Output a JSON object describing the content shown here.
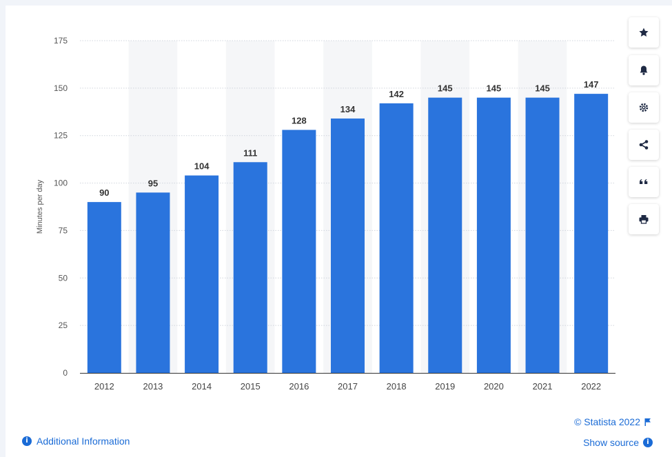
{
  "chart_data": {
    "type": "bar",
    "categories": [
      "2012",
      "2013",
      "2014",
      "2015",
      "2016",
      "2017",
      "2018",
      "2019",
      "2020",
      "2021",
      "2022"
    ],
    "values": [
      90,
      95,
      104,
      111,
      128,
      134,
      142,
      145,
      145,
      145,
      147
    ],
    "data_labels": [
      "90",
      "95",
      "104",
      "111",
      "128",
      "134",
      "142",
      "145",
      "145",
      "145",
      "147"
    ],
    "ylabel": "Minutes per day",
    "xlabel": "",
    "ylim": [
      0,
      175
    ],
    "y_ticks": [
      "0",
      "25",
      "50",
      "75",
      "100",
      "125",
      "150",
      "175"
    ],
    "grid": true,
    "alternating_column_shading": true,
    "bar_color": "#2a74dd"
  },
  "toolbar": {
    "buttons": [
      "star-icon",
      "bell-icon",
      "gear-icon",
      "share-icon",
      "quote-icon",
      "print-icon"
    ]
  },
  "footer": {
    "additional_info": "Additional Information",
    "credit": "© Statista 2022",
    "show_source": "Show source",
    "info_glyph": "i"
  },
  "colors": {
    "accent": "#1a6bd6",
    "bar": "#2a74dd",
    "alt_column": "#f5f6f8",
    "grid": "#cfd4dc"
  }
}
